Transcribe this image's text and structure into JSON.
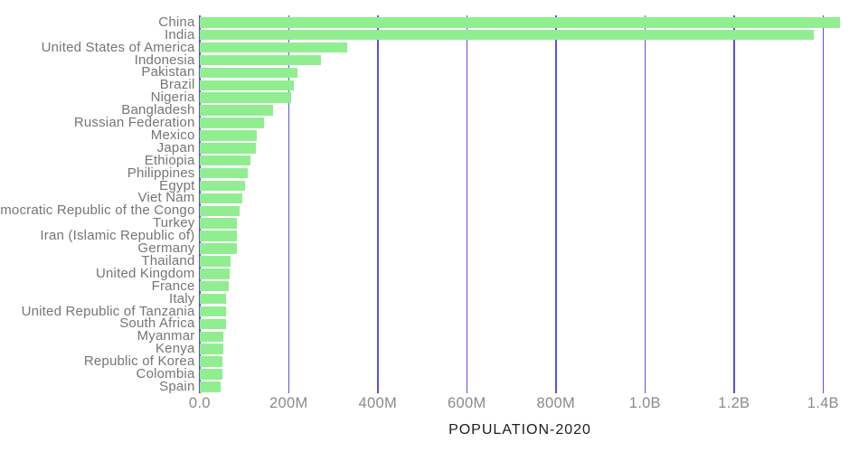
{
  "chart_data": {
    "type": "bar",
    "orientation": "horizontal",
    "title": "",
    "xlabel": "POPULATION-2020",
    "ylabel": "",
    "legend": false,
    "grid": true,
    "gridlines": "vertical",
    "xlim_millions": [
      0,
      1450
    ],
    "x_ticks": [
      {
        "label": "0.0",
        "value_millions": 0
      },
      {
        "label": "200M",
        "value_millions": 200
      },
      {
        "label": "400M",
        "value_millions": 400
      },
      {
        "label": "600M",
        "value_millions": 600
      },
      {
        "label": "800M",
        "value_millions": 800
      },
      {
        "label": "1.0B",
        "value_millions": 1000
      },
      {
        "label": "1.2B",
        "value_millions": 1200
      },
      {
        "label": "1.4B",
        "value_millions": 1400
      }
    ],
    "categories": [
      "China",
      "India",
      "United States of America",
      "Indonesia",
      "Pakistan",
      "Brazil",
      "Nigeria",
      "Bangladesh",
      "Russian Federation",
      "Mexico",
      "Japan",
      "Ethiopia",
      "Philippines",
      "Egypt",
      "Viet Nam",
      "Democratic Republic of the Congo",
      "Turkey",
      "Iran (Islamic Republic of)",
      "Germany",
      "Thailand",
      "United Kingdom",
      "France",
      "Italy",
      "United Republic of Tanzania",
      "South Africa",
      "Myanmar",
      "Kenya",
      "Republic of Korea",
      "Colombia",
      "Spain"
    ],
    "values_millions": [
      1439.3,
      1380.0,
      331.0,
      273.5,
      220.9,
      212.6,
      206.1,
      164.7,
      145.9,
      128.9,
      126.5,
      115.0,
      109.6,
      102.3,
      97.3,
      89.6,
      84.3,
      84.0,
      83.8,
      69.8,
      67.9,
      65.3,
      60.5,
      59.7,
      59.3,
      54.4,
      53.8,
      51.3,
      50.9,
      46.8
    ],
    "colors": {
      "bar": "#90ee90",
      "gridline": "#4643e2",
      "category_label": "#757575",
      "tick_label": "#8a8a8a",
      "axis_title": "#1c1c1c",
      "background": "#ffffff"
    }
  }
}
